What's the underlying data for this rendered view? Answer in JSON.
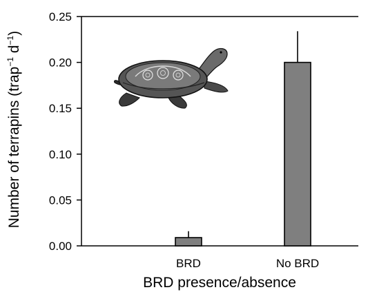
{
  "chart_data": {
    "type": "bar",
    "categories": [
      "BRD",
      "No BRD"
    ],
    "values": [
      0.009,
      0.2
    ],
    "error_upper": [
      0.016,
      0.234
    ],
    "xlabel": "BRD presence/absence",
    "ylabel": {
      "prefix": "Number of terrapins (trap",
      "exp1": "−1",
      "mid": " d",
      "exp2": "−1",
      "suffix": ")"
    },
    "ylim": [
      0,
      0.25
    ],
    "yticks": [
      "0.00",
      "0.05",
      "0.10",
      "0.15",
      "0.20",
      "0.25"
    ],
    "grid": false,
    "bar_color": "#7f7f7f",
    "illustration": "terrapin-illustration"
  }
}
